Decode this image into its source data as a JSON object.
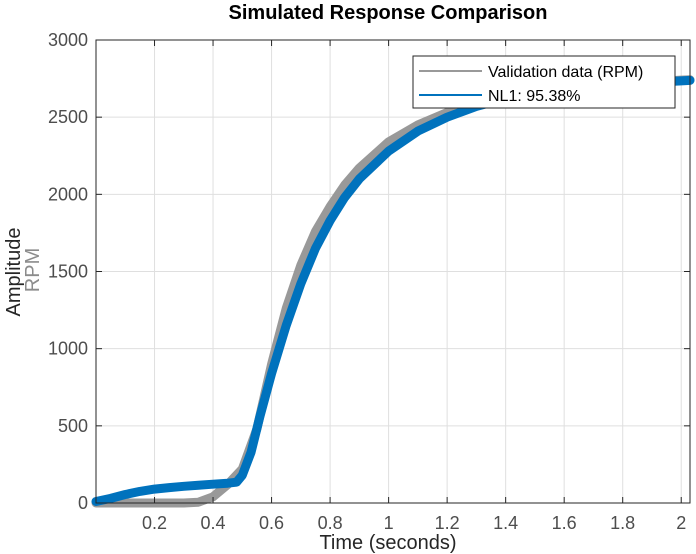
{
  "chart_data": {
    "type": "line",
    "title": "Simulated Response Comparison",
    "xlabel": "Time (seconds)",
    "ylabel": "Amplitude",
    "ylabel_unit": "RPM",
    "xlim": [
      0,
      2.03
    ],
    "ylim": [
      0,
      3000
    ],
    "x_ticks": [
      0.2,
      0.4,
      0.6,
      0.8,
      1,
      1.2,
      1.4,
      1.6,
      1.8,
      2
    ],
    "x_tick_labels": [
      "0.2",
      "0.4",
      "0.6",
      "0.8",
      "1",
      "1.2",
      "1.4",
      "1.6",
      "1.8",
      "2"
    ],
    "y_ticks": [
      0,
      500,
      1000,
      1500,
      2000,
      2500,
      3000
    ],
    "y_tick_labels": [
      "0",
      "500",
      "1000",
      "1500",
      "2000",
      "2500",
      "3000"
    ],
    "grid": true,
    "legend_position": "top-right",
    "series": [
      {
        "name": "Validation data (RPM)",
        "color": "#999999",
        "x": [
          0,
          0.1,
          0.2,
          0.3,
          0.35,
          0.4,
          0.45,
          0.5,
          0.55,
          0.6,
          0.65,
          0.7,
          0.75,
          0.8,
          0.85,
          0.9,
          1.0,
          1.1,
          1.2,
          1.3,
          1.4,
          1.5,
          1.6,
          1.7,
          1.8,
          1.9,
          2.0,
          2.03
        ],
        "y": [
          0,
          0,
          0,
          0,
          5,
          40,
          120,
          220,
          480,
          900,
          1260,
          1540,
          1760,
          1920,
          2060,
          2170,
          2340,
          2450,
          2530,
          2590,
          2630,
          2665,
          2690,
          2710,
          2720,
          2730,
          2740,
          2742
        ]
      },
      {
        "name": "NL1: 95.38%",
        "color": "#0072bd",
        "x": [
          0,
          0.05,
          0.1,
          0.15,
          0.2,
          0.25,
          0.3,
          0.35,
          0.4,
          0.45,
          0.48,
          0.5,
          0.53,
          0.56,
          0.6,
          0.65,
          0.7,
          0.75,
          0.8,
          0.85,
          0.9,
          1.0,
          1.1,
          1.2,
          1.3,
          1.4,
          1.5,
          1.6,
          1.7,
          1.8,
          1.9,
          2.0,
          2.03
        ],
        "y": [
          10,
          30,
          55,
          75,
          90,
          100,
          108,
          115,
          122,
          128,
          135,
          180,
          330,
          560,
          840,
          1150,
          1420,
          1650,
          1830,
          1980,
          2100,
          2280,
          2410,
          2500,
          2570,
          2620,
          2655,
          2680,
          2700,
          2715,
          2725,
          2735,
          2738
        ]
      }
    ]
  }
}
